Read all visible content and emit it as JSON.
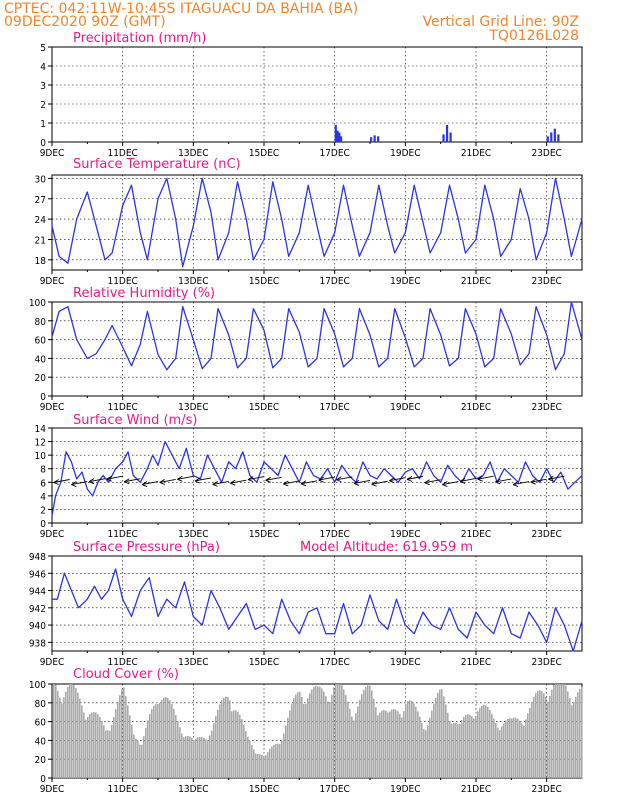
{
  "header": {
    "line1": "CPTEC:   042:11W-10:45S   ITAGUACU DA BAHIA (BA)",
    "date": "09DEC2020 90Z (GMT)",
    "grid_line": "Vertical Grid Line: 90Z",
    "code": "TQ0126L028"
  },
  "x_ticks": [
    "9DEC",
    "11DEC",
    "13DEC",
    "15DEC",
    "17DEC",
    "19DEC",
    "21DEC",
    "23DEC"
  ],
  "colors": {
    "header": "#f0842c",
    "title": "#e8198c",
    "series": "#2a35e6",
    "cloud": "#a9a9a9",
    "wind_arrow": "#000000"
  },
  "chart_data": [
    {
      "type": "bar",
      "title": "Precipitation (mm/h)",
      "ylim": [
        0,
        5
      ],
      "yticks": [
        "0",
        "1",
        "2",
        "3",
        "4",
        "5"
      ],
      "x_range_days": [
        9,
        24
      ],
      "bars": [
        [
          17.0,
          0.9
        ],
        [
          17.05,
          0.6
        ],
        [
          17.1,
          0.5
        ],
        [
          17.15,
          0.3
        ],
        [
          18.0,
          0.25
        ],
        [
          18.1,
          0.35
        ],
        [
          18.2,
          0.3
        ],
        [
          20.05,
          0.4
        ],
        [
          20.15,
          0.9
        ],
        [
          20.25,
          0.5
        ],
        [
          23.0,
          0.3
        ],
        [
          23.1,
          0.5
        ],
        [
          23.2,
          0.7
        ],
        [
          23.3,
          0.4
        ]
      ]
    },
    {
      "type": "line",
      "title": "Surface Temperature (nC)",
      "ylim": [
        16.5,
        30.5
      ],
      "yticks": [
        "18",
        "21",
        "24",
        "27",
        "30"
      ],
      "x": [
        9.0,
        9.2,
        9.45,
        9.7,
        10.0,
        10.25,
        10.5,
        10.7,
        11.0,
        11.25,
        11.5,
        11.7,
        12.0,
        12.25,
        12.5,
        12.7,
        13.0,
        13.25,
        13.5,
        13.7,
        14.0,
        14.25,
        14.5,
        14.7,
        15.0,
        15.25,
        15.5,
        15.7,
        16.0,
        16.25,
        16.5,
        16.7,
        17.0,
        17.25,
        17.5,
        17.7,
        18.0,
        18.25,
        18.5,
        18.7,
        19.0,
        19.25,
        19.5,
        19.7,
        20.0,
        20.25,
        20.5,
        20.7,
        21.0,
        21.25,
        21.5,
        21.7,
        22.0,
        22.25,
        22.5,
        22.7,
        23.0,
        23.25,
        23.5,
        23.7,
        24.0
      ],
      "values": [
        23,
        18.5,
        17.5,
        24,
        28,
        23,
        18,
        19,
        26,
        29,
        22,
        18,
        27,
        30,
        24,
        17,
        23,
        30,
        25,
        18,
        22,
        29.5,
        24,
        18,
        21,
        29.5,
        24,
        18.5,
        22,
        29,
        23,
        18.5,
        22,
        29,
        23,
        18.5,
        22,
        29,
        23,
        19,
        22,
        29,
        23.5,
        19,
        22,
        29,
        24,
        19,
        21,
        29,
        24,
        18.5,
        21,
        28.5,
        24,
        18,
        22,
        30,
        24,
        18.5,
        24
      ]
    },
    {
      "type": "line",
      "title": "Relative Humidity (%)",
      "ylim": [
        0,
        100
      ],
      "yticks": [
        "0",
        "20",
        "40",
        "60",
        "80",
        "100"
      ],
      "x": [
        9.0,
        9.2,
        9.45,
        9.7,
        10.0,
        10.25,
        10.5,
        10.7,
        11.0,
        11.25,
        11.5,
        11.7,
        12.0,
        12.25,
        12.5,
        12.7,
        13.0,
        13.25,
        13.5,
        13.7,
        14.0,
        14.25,
        14.5,
        14.7,
        15.0,
        15.25,
        15.5,
        15.7,
        16.0,
        16.25,
        16.5,
        16.7,
        17.0,
        17.25,
        17.5,
        17.7,
        18.0,
        18.25,
        18.5,
        18.7,
        19.0,
        19.25,
        19.5,
        19.7,
        20.0,
        20.25,
        20.5,
        20.7,
        21.0,
        21.25,
        21.5,
        21.7,
        22.0,
        22.25,
        22.5,
        22.7,
        23.0,
        23.25,
        23.5,
        23.7,
        24.0
      ],
      "values": [
        63,
        90,
        95,
        60,
        40,
        45,
        60,
        75,
        52,
        32,
        55,
        90,
        44,
        28,
        40,
        95,
        60,
        29,
        40,
        93,
        65,
        30,
        40,
        93,
        70,
        30,
        40,
        93,
        68,
        31,
        40,
        93,
        66,
        31,
        40,
        93,
        65,
        31,
        40,
        93,
        62,
        31,
        40,
        93,
        65,
        32,
        40,
        93,
        66,
        31,
        40,
        93,
        66,
        33,
        45,
        95,
        65,
        28,
        45,
        100,
        60
      ]
    },
    {
      "type": "line",
      "title": "Surface Wind (m/s)",
      "ylim": [
        0,
        14
      ],
      "yticks": [
        "0",
        "2",
        "4",
        "6",
        "8",
        "10",
        "12",
        "14"
      ],
      "x": [
        9.0,
        9.1,
        9.25,
        9.4,
        9.55,
        9.7,
        9.85,
        10.0,
        10.15,
        10.3,
        10.45,
        10.6,
        10.8,
        11.0,
        11.15,
        11.3,
        11.5,
        11.7,
        11.85,
        12.0,
        12.2,
        12.4,
        12.6,
        12.8,
        13.0,
        13.2,
        13.4,
        13.6,
        13.8,
        14.0,
        14.2,
        14.4,
        14.6,
        14.8,
        15.0,
        15.2,
        15.4,
        15.6,
        15.8,
        16.0,
        16.2,
        16.4,
        16.6,
        16.8,
        17.0,
        17.2,
        17.4,
        17.6,
        17.8,
        18.0,
        18.2,
        18.4,
        18.6,
        18.8,
        19.0,
        19.2,
        19.4,
        19.6,
        19.8,
        20.0,
        20.2,
        20.4,
        20.6,
        20.8,
        21.0,
        21.2,
        21.4,
        21.6,
        21.8,
        22.0,
        22.2,
        22.4,
        22.6,
        22.8,
        23.0,
        23.2,
        23.4,
        23.6,
        23.8,
        24.0
      ],
      "values": [
        1,
        4,
        6,
        10.5,
        9,
        6.5,
        7.5,
        5,
        4,
        6,
        7,
        6,
        8,
        9,
        10.5,
        7,
        6,
        8,
        10,
        8.5,
        12,
        10,
        8,
        11,
        7,
        6.5,
        10,
        8,
        6,
        9,
        8,
        10.5,
        7,
        6,
        9,
        8,
        7,
        10,
        8,
        6,
        9,
        7,
        6.5,
        8,
        6,
        8.5,
        7,
        6,
        9,
        7,
        6.5,
        8,
        7,
        6,
        7.5,
        8,
        6.5,
        9,
        7,
        6,
        8.5,
        7,
        6,
        8,
        6.5,
        7,
        9,
        6,
        8,
        7,
        6,
        9,
        7,
        6,
        8,
        6,
        7.5,
        5,
        6,
        7
      ]
    },
    {
      "type": "line",
      "title": "Surface Pressure (hPa)",
      "annotation": "Model Altitude: 619.959  m",
      "ylim": [
        937,
        948
      ],
      "yticks": [
        "938",
        "940",
        "942",
        "944",
        "946",
        "948"
      ],
      "x": [
        9.0,
        9.15,
        9.35,
        9.55,
        9.75,
        10.0,
        10.2,
        10.4,
        10.6,
        10.8,
        11.0,
        11.25,
        11.5,
        11.75,
        12.0,
        12.25,
        12.5,
        12.75,
        13.0,
        13.25,
        13.5,
        13.75,
        14.0,
        14.25,
        14.5,
        14.75,
        15.0,
        15.25,
        15.5,
        15.75,
        16.0,
        16.25,
        16.5,
        16.75,
        17.0,
        17.25,
        17.5,
        17.75,
        18.0,
        18.25,
        18.5,
        18.75,
        19.0,
        19.25,
        19.5,
        19.75,
        20.0,
        20.25,
        20.5,
        20.75,
        21.0,
        21.25,
        21.5,
        21.75,
        22.0,
        22.25,
        22.5,
        22.75,
        23.0,
        23.25,
        23.5,
        23.75,
        24.0
      ],
      "values": [
        943,
        943,
        946,
        944,
        942,
        943,
        944.5,
        943,
        944,
        946.5,
        943,
        941,
        944,
        945.5,
        941,
        943,
        942,
        945,
        941,
        940,
        944,
        942,
        939.5,
        941,
        942.5,
        939.5,
        940,
        939,
        943,
        940.5,
        939,
        941.5,
        942,
        939,
        939,
        942.5,
        939,
        940,
        943.5,
        940.5,
        939.5,
        943,
        940,
        939,
        941.5,
        940,
        939.5,
        942,
        939.5,
        938.5,
        941.5,
        940,
        939,
        942,
        939,
        938.5,
        941.5,
        940,
        938,
        942,
        940,
        937,
        940.5
      ]
    },
    {
      "type": "bar",
      "title": "Cloud Cover (%)",
      "ylim": [
        0,
        100
      ],
      "yticks": [
        "0",
        "20",
        "40",
        "60",
        "80",
        "100"
      ],
      "x": [
        9.0,
        9.5,
        10.0,
        10.5,
        11.0,
        11.5,
        12.0,
        12.5,
        13.0,
        13.5,
        14.0,
        14.5,
        15.0,
        15.5,
        16.0,
        16.5,
        17.0,
        17.5,
        18.0,
        18.5,
        19.0,
        19.5,
        20.0,
        20.5,
        21.0,
        21.5,
        22.0,
        22.5,
        23.0,
        23.5,
        24.0
      ],
      "values": [
        95,
        90,
        70,
        50,
        85,
        30,
        92,
        60,
        35,
        50,
        90,
        40,
        20,
        45,
        90,
        85,
        95,
        70,
        90,
        60,
        80,
        55,
        85,
        50,
        75,
        60,
        55,
        70,
        95,
        92,
        85
      ]
    }
  ]
}
